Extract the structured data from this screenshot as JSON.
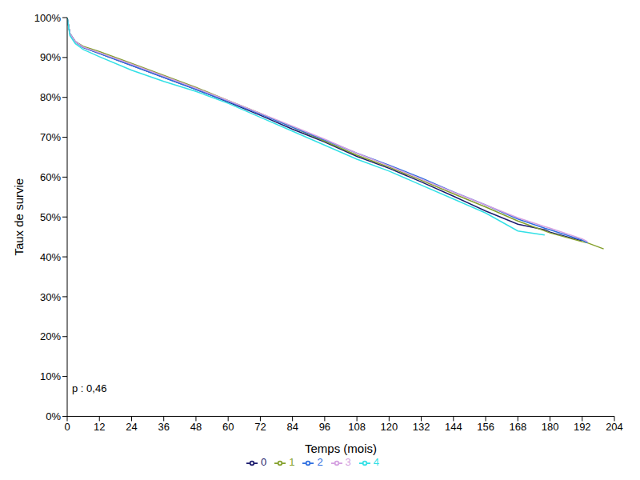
{
  "chart_data": {
    "type": "line",
    "x_label": "Temps (mois)",
    "y_label": "Taux de survie",
    "annotation": "p : 0,46",
    "legend": "bottom",
    "grid": false,
    "x": [
      0,
      1,
      3,
      6,
      12,
      24,
      36,
      48,
      60,
      72,
      84,
      96,
      108,
      120,
      132,
      144,
      156,
      168,
      178,
      180,
      192,
      194,
      200
    ],
    "xlim": [
      0,
      204
    ],
    "xticks": [
      0,
      12,
      24,
      36,
      48,
      60,
      72,
      84,
      96,
      108,
      120,
      132,
      144,
      156,
      168,
      180,
      192,
      204
    ],
    "ylim": [
      0,
      100
    ],
    "yticks": [
      {
        "value": 0,
        "label": "0%"
      },
      {
        "value": 10,
        "label": "10%"
      },
      {
        "value": 20,
        "label": "20%"
      },
      {
        "value": 30,
        "label": "30%"
      },
      {
        "value": 40,
        "label": "40%"
      },
      {
        "value": 50,
        "label": "50%"
      },
      {
        "value": 60,
        "label": "60%"
      },
      {
        "value": 70,
        "label": "70%"
      },
      {
        "value": 80,
        "label": "80%"
      },
      {
        "value": 90,
        "label": "90%"
      },
      {
        "value": 100,
        "label": "100%"
      }
    ],
    "series": [
      {
        "name": "0",
        "color": "#1c1c6e",
        "values": [
          100,
          96,
          94,
          92.5,
          91,
          88,
          85,
          82,
          78.8,
          75.5,
          72,
          68.8,
          65.2,
          62.2,
          58.8,
          55.2,
          51.5,
          48.2,
          46.8,
          46.2,
          44,
          null,
          null
        ]
      },
      {
        "name": "1",
        "color": "#84a02c",
        "values": [
          100,
          96,
          94,
          92.8,
          91.5,
          88.5,
          85.5,
          82.5,
          79.2,
          76,
          72.5,
          69,
          65.5,
          62.5,
          59.2,
          55.8,
          52.5,
          49,
          46.5,
          46,
          43.8,
          43.5,
          42
        ]
      },
      {
        "name": "2",
        "color": "#2f6fe0",
        "values": [
          100,
          96,
          94,
          92.5,
          91,
          88,
          85,
          82,
          79,
          75.8,
          72.5,
          69.3,
          66,
          63,
          59.8,
          56.3,
          53,
          49.5,
          47.2,
          46.8,
          44.2,
          43.5,
          null
        ]
      },
      {
        "name": "3",
        "color": "#d4a0e0",
        "values": [
          100,
          96,
          94,
          92.6,
          91.2,
          88.3,
          85.3,
          82.3,
          79.2,
          76,
          72.8,
          69.5,
          66,
          62.8,
          59.5,
          56.2,
          53,
          49.8,
          47.6,
          47.2,
          44.5,
          43.8,
          null
        ]
      },
      {
        "name": "4",
        "color": "#33e0e6",
        "values": [
          100,
          95.5,
          93.5,
          92,
          90.2,
          86.8,
          84,
          81.5,
          78.5,
          75,
          71.5,
          68,
          64.5,
          61.5,
          58,
          54.5,
          51,
          46.5,
          45.5,
          null,
          null,
          null,
          null
        ]
      }
    ]
  }
}
